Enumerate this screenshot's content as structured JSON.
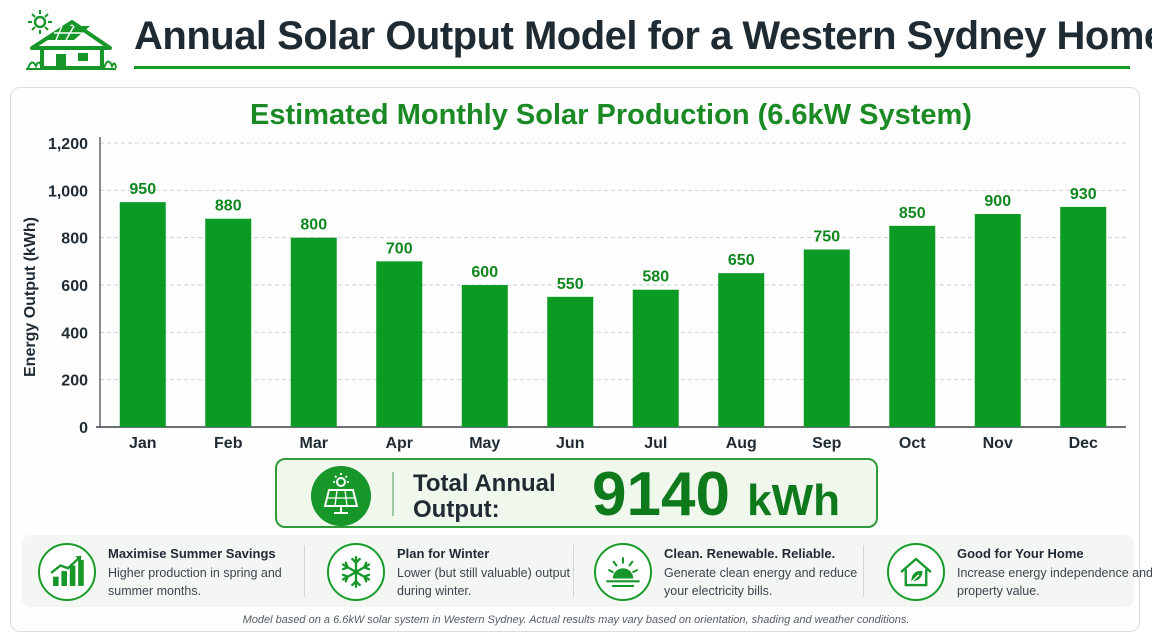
{
  "header": {
    "title": "Annual Solar Output Model for a Western Sydney Home",
    "logo_icon": "solar-house-icon"
  },
  "chart_data": {
    "type": "bar",
    "title": "Estimated Monthly Solar Production (6.6kW System)",
    "xlabel": "",
    "ylabel": "Energy Output (kWh)",
    "categories": [
      "Jan",
      "Feb",
      "Mar",
      "Apr",
      "May",
      "Jun",
      "Jul",
      "Aug",
      "Sep",
      "Oct",
      "Nov",
      "Dec"
    ],
    "values": [
      950,
      880,
      800,
      700,
      600,
      550,
      580,
      650,
      750,
      850,
      900,
      930
    ],
    "ylim": [
      0,
      1200
    ],
    "yticks": [
      0,
      200,
      400,
      600,
      800,
      1000,
      1200
    ],
    "ytick_labels": [
      "0",
      "200",
      "400",
      "600",
      "800",
      "1,000",
      "1,200"
    ],
    "grid": true,
    "data_labels": true,
    "colors": {
      "bar": "#0b9a24",
      "label": "#10861f",
      "title": "#1b8a25"
    }
  },
  "total": {
    "label": "Total Annual Output:",
    "value": "9140",
    "unit": "kWh",
    "icon": "solar-panel-sun-icon"
  },
  "features": [
    {
      "icon": "growth-chart-icon",
      "title": "Maximise Summer Savings",
      "text": "Higher production in spring and summer months."
    },
    {
      "icon": "snowflake-icon",
      "title": "Plan for Winter",
      "text": "Lower (but still valuable) output during winter."
    },
    {
      "icon": "sunrise-icon",
      "title": "Clean. Renewable. Reliable.",
      "text": "Generate clean energy and reduce your electricity bills."
    },
    {
      "icon": "eco-home-icon",
      "title": "Good for Your Home",
      "text": "Increase energy independence and property value."
    }
  ],
  "footnote": "Model based on a 6.6kW solar system in Western Sydney. Actual results may vary based on orientation, shading and weather conditions.",
  "colors": {
    "accent": "#129b1f",
    "dark": "#1f2a33"
  }
}
